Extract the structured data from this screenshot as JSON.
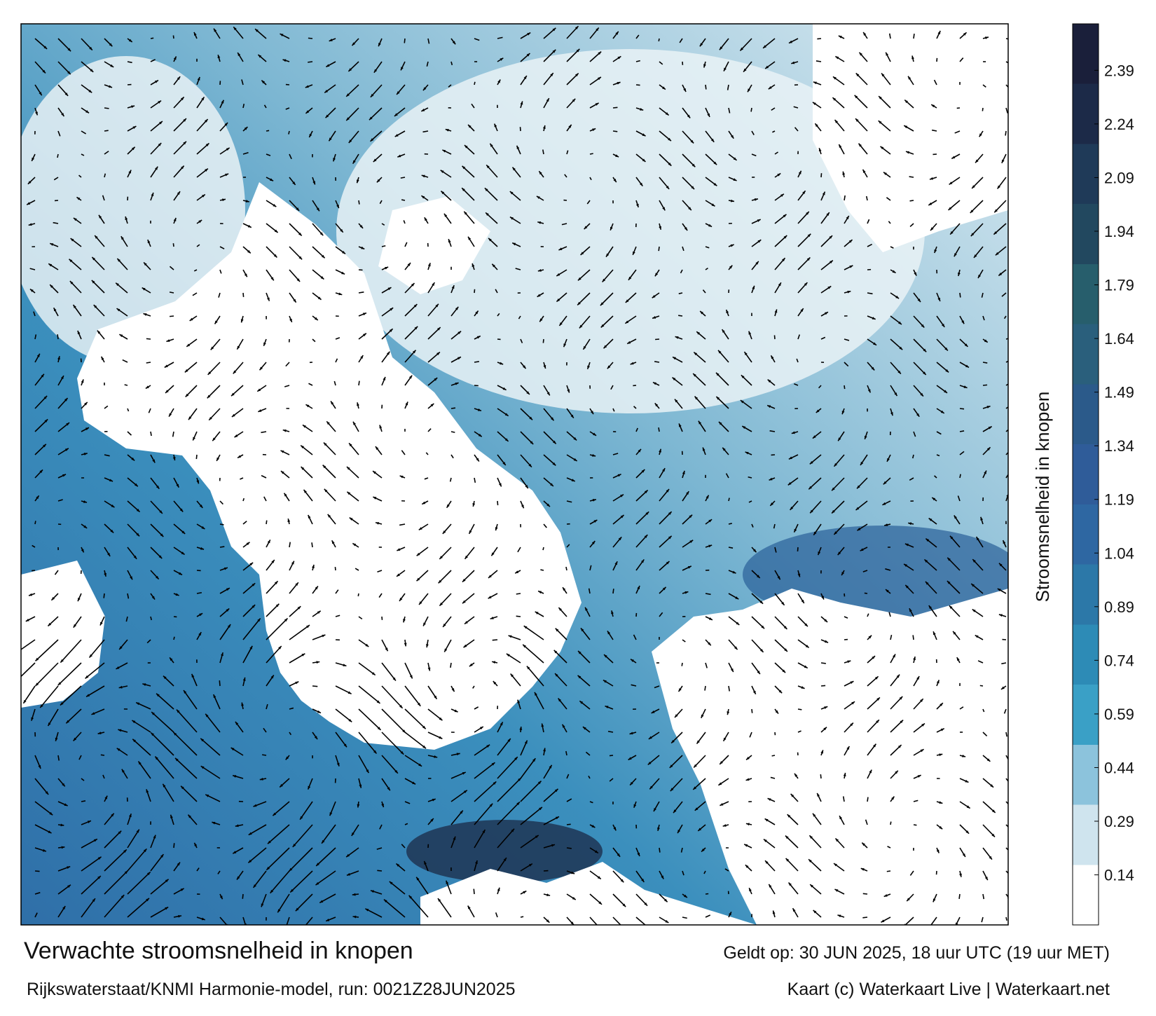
{
  "map": {
    "title": "Verwachte stroomsnelheid in knopen",
    "subtitle": "Rijkswaterstaat/KNMI Harmonie-model, run: 0021Z28JUN2025",
    "valid": "Geldt op: 30 JUN 2025, 18 uur UTC (19 uur MET)",
    "credit": "Kaart (c) Waterkaart Live | Waterkaart.net",
    "colorbar": {
      "label": "Stroomsnelheid in knopen",
      "lim": [
        0,
        2.52
      ],
      "ticks": [
        0.14,
        0.29,
        0.44,
        0.59,
        0.74,
        0.89,
        1.04,
        1.19,
        1.34,
        1.49,
        1.64,
        1.79,
        1.94,
        2.09,
        2.24,
        2.39
      ],
      "colors": [
        "#ffffff",
        "#cfe4ee",
        "#8cc3dc",
        "#3aa0c6",
        "#2d8bb6",
        "#2c78a8",
        "#2e67a2",
        "#2f5c99",
        "#2b5a8a",
        "#2a5f7c",
        "#275e6c",
        "#22485f",
        "#1f3a58",
        "#1c2a48",
        "#1a1f3a"
      ]
    }
  }
}
